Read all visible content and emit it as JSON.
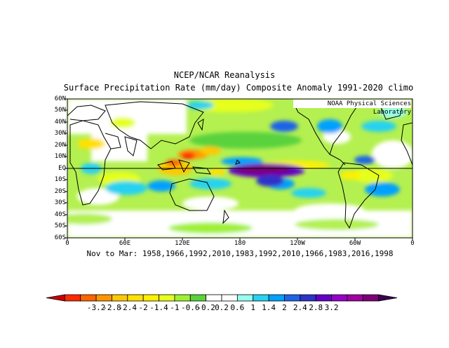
{
  "title_line1": "NCEP/NCAR Reanalysis",
  "title_line2": "Surface Precipitation Rate (mm/day) Composite Anomaly 1991-2020 climo",
  "watermark": "NOAA Physical Sciences Laboratory",
  "subtitle_bottom": "Nov to Mar: 1958,1966,1992,2010,1983,1992,2010,1966,1983,2016,1998",
  "lat_labels": [
    "60N",
    "50N",
    "40N",
    "30N",
    "20N",
    "10N",
    "EQ",
    "10S",
    "20S",
    "30S",
    "40S",
    "50S",
    "60S"
  ],
  "lon_labels": [
    "0",
    "60E",
    "120E",
    "180",
    "120W",
    "60W",
    "0"
  ],
  "colorbar": {
    "labels": [
      "-3.2",
      "-2.8",
      "-2.4",
      "-2",
      "-1.4",
      "-1",
      "-0.6",
      "-0.2",
      "0.2",
      "0.6",
      "1",
      "1.4",
      "2",
      "2.4",
      "2.8",
      "3.2"
    ],
    "colors": [
      "#c80000",
      "#ff2a00",
      "#ff6400",
      "#ff9600",
      "#ffc800",
      "#ffe100",
      "#fff000",
      "#e6ff1e",
      "#a0f032",
      "#5ad23c",
      "#ffffff",
      "#ffffff",
      "#96fff0",
      "#28d2f0",
      "#00a0ff",
      "#1e64e6",
      "#2d32c8",
      "#6400c8",
      "#9600c8",
      "#a000a0",
      "#7d0078",
      "#3c0050"
    ]
  }
}
